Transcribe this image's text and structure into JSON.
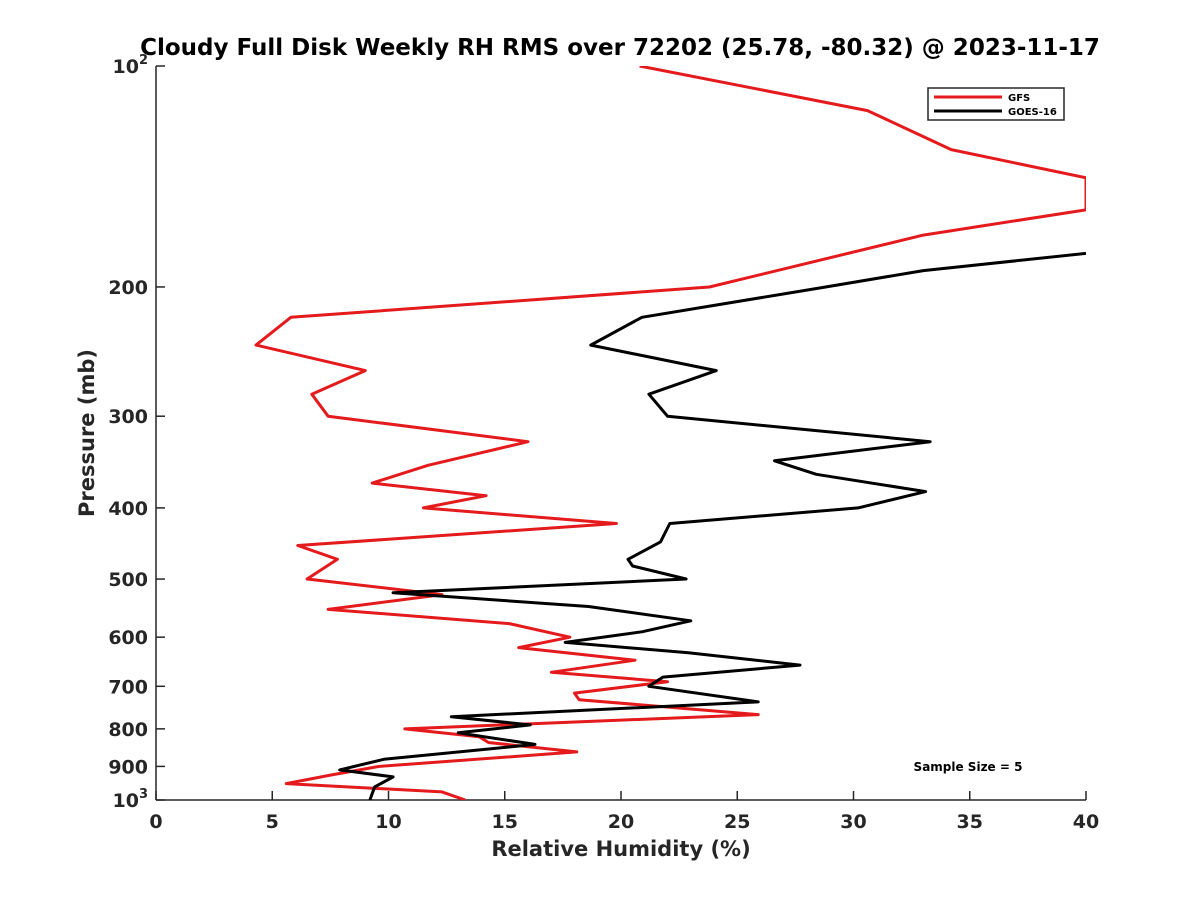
{
  "chart_data": {
    "type": "line",
    "title": "Cloudy Full Disk Weekly RH RMS over 72202 (25.78, -80.32) @ 2023-11-17",
    "xlabel": "Relative Humidity (%)",
    "ylabel": "Pressure (mb)",
    "xlim": [
      0,
      40
    ],
    "ylim": [
      100,
      1000
    ],
    "yscale": "log",
    "y_reversed": true,
    "xticks": [
      {
        "value": 0,
        "label": "0"
      },
      {
        "value": 5,
        "label": "5"
      },
      {
        "value": 10,
        "label": "10"
      },
      {
        "value": 15,
        "label": "15"
      },
      {
        "value": 20,
        "label": "20"
      },
      {
        "value": 25,
        "label": "25"
      },
      {
        "value": 30,
        "label": "30"
      },
      {
        "value": 35,
        "label": "35"
      },
      {
        "value": 40,
        "label": "40"
      }
    ],
    "yticks": [
      {
        "value": 100,
        "base": "10",
        "exp": "2"
      },
      {
        "value": 200,
        "label": "200"
      },
      {
        "value": 300,
        "label": "300"
      },
      {
        "value": 400,
        "label": "400"
      },
      {
        "value": 500,
        "label": "500"
      },
      {
        "value": 600,
        "label": "600"
      },
      {
        "value": 700,
        "label": "700"
      },
      {
        "value": 800,
        "label": "800"
      },
      {
        "value": 900,
        "label": "900"
      },
      {
        "value": 1000,
        "base": "10",
        "exp": "3"
      }
    ],
    "grid": false,
    "legend_position": "top-right",
    "annotation": "Sample Size = 5",
    "series": [
      {
        "name": "GFS",
        "color": "#e41a1c",
        "points": [
          [
            20.8,
            100
          ],
          [
            30.6,
            115
          ],
          [
            34.2,
            130
          ],
          [
            40.0,
            142
          ],
          [
            40.0,
            157
          ],
          [
            33.0,
            170
          ],
          [
            23.8,
            200
          ],
          [
            5.8,
            220
          ],
          [
            4.3,
            240
          ],
          [
            9.0,
            260
          ],
          [
            6.7,
            280
          ],
          [
            7.4,
            300
          ],
          [
            16.0,
            325
          ],
          [
            11.7,
            350
          ],
          [
            9.3,
            370
          ],
          [
            14.2,
            385
          ],
          [
            11.5,
            400
          ],
          [
            19.8,
            420
          ],
          [
            6.1,
            450
          ],
          [
            7.8,
            470
          ],
          [
            6.5,
            500
          ],
          [
            12.3,
            525
          ],
          [
            7.4,
            550
          ],
          [
            15.2,
            575
          ],
          [
            17.8,
            600
          ],
          [
            15.6,
            620
          ],
          [
            20.6,
            645
          ],
          [
            17.0,
            670
          ],
          [
            22.0,
            690
          ],
          [
            18.0,
            715
          ],
          [
            18.2,
            730
          ],
          [
            25.9,
            765
          ],
          [
            10.7,
            800
          ],
          [
            13.9,
            820
          ],
          [
            14.3,
            835
          ],
          [
            18.1,
            860
          ],
          [
            9.6,
            900
          ],
          [
            7.5,
            925
          ],
          [
            5.6,
            950
          ],
          [
            12.3,
            975
          ],
          [
            13.3,
            1000
          ]
        ]
      },
      {
        "name": "GOES-16",
        "color": "#000000",
        "points": [
          [
            40.0,
            180
          ],
          [
            33.0,
            190
          ],
          [
            28.8,
            200
          ],
          [
            20.9,
            220
          ],
          [
            18.7,
            240
          ],
          [
            24.1,
            260
          ],
          [
            21.2,
            280
          ],
          [
            22.0,
            300
          ],
          [
            33.3,
            325
          ],
          [
            26.6,
            345
          ],
          [
            28.4,
            360
          ],
          [
            33.1,
            380
          ],
          [
            30.2,
            400
          ],
          [
            22.1,
            420
          ],
          [
            21.7,
            445
          ],
          [
            20.3,
            470
          ],
          [
            20.5,
            480
          ],
          [
            22.8,
            500
          ],
          [
            10.2,
            522
          ],
          [
            18.6,
            545
          ],
          [
            23.0,
            570
          ],
          [
            20.9,
            590
          ],
          [
            17.6,
            610
          ],
          [
            22.9,
            630
          ],
          [
            27.7,
            655
          ],
          [
            21.8,
            680
          ],
          [
            21.2,
            700
          ],
          [
            25.9,
            735
          ],
          [
            12.7,
            770
          ],
          [
            16.1,
            790
          ],
          [
            13.0,
            810
          ],
          [
            16.3,
            840
          ],
          [
            9.8,
            880
          ],
          [
            7.9,
            910
          ],
          [
            10.2,
            930
          ],
          [
            9.4,
            960
          ],
          [
            9.2,
            1000
          ]
        ]
      }
    ]
  }
}
